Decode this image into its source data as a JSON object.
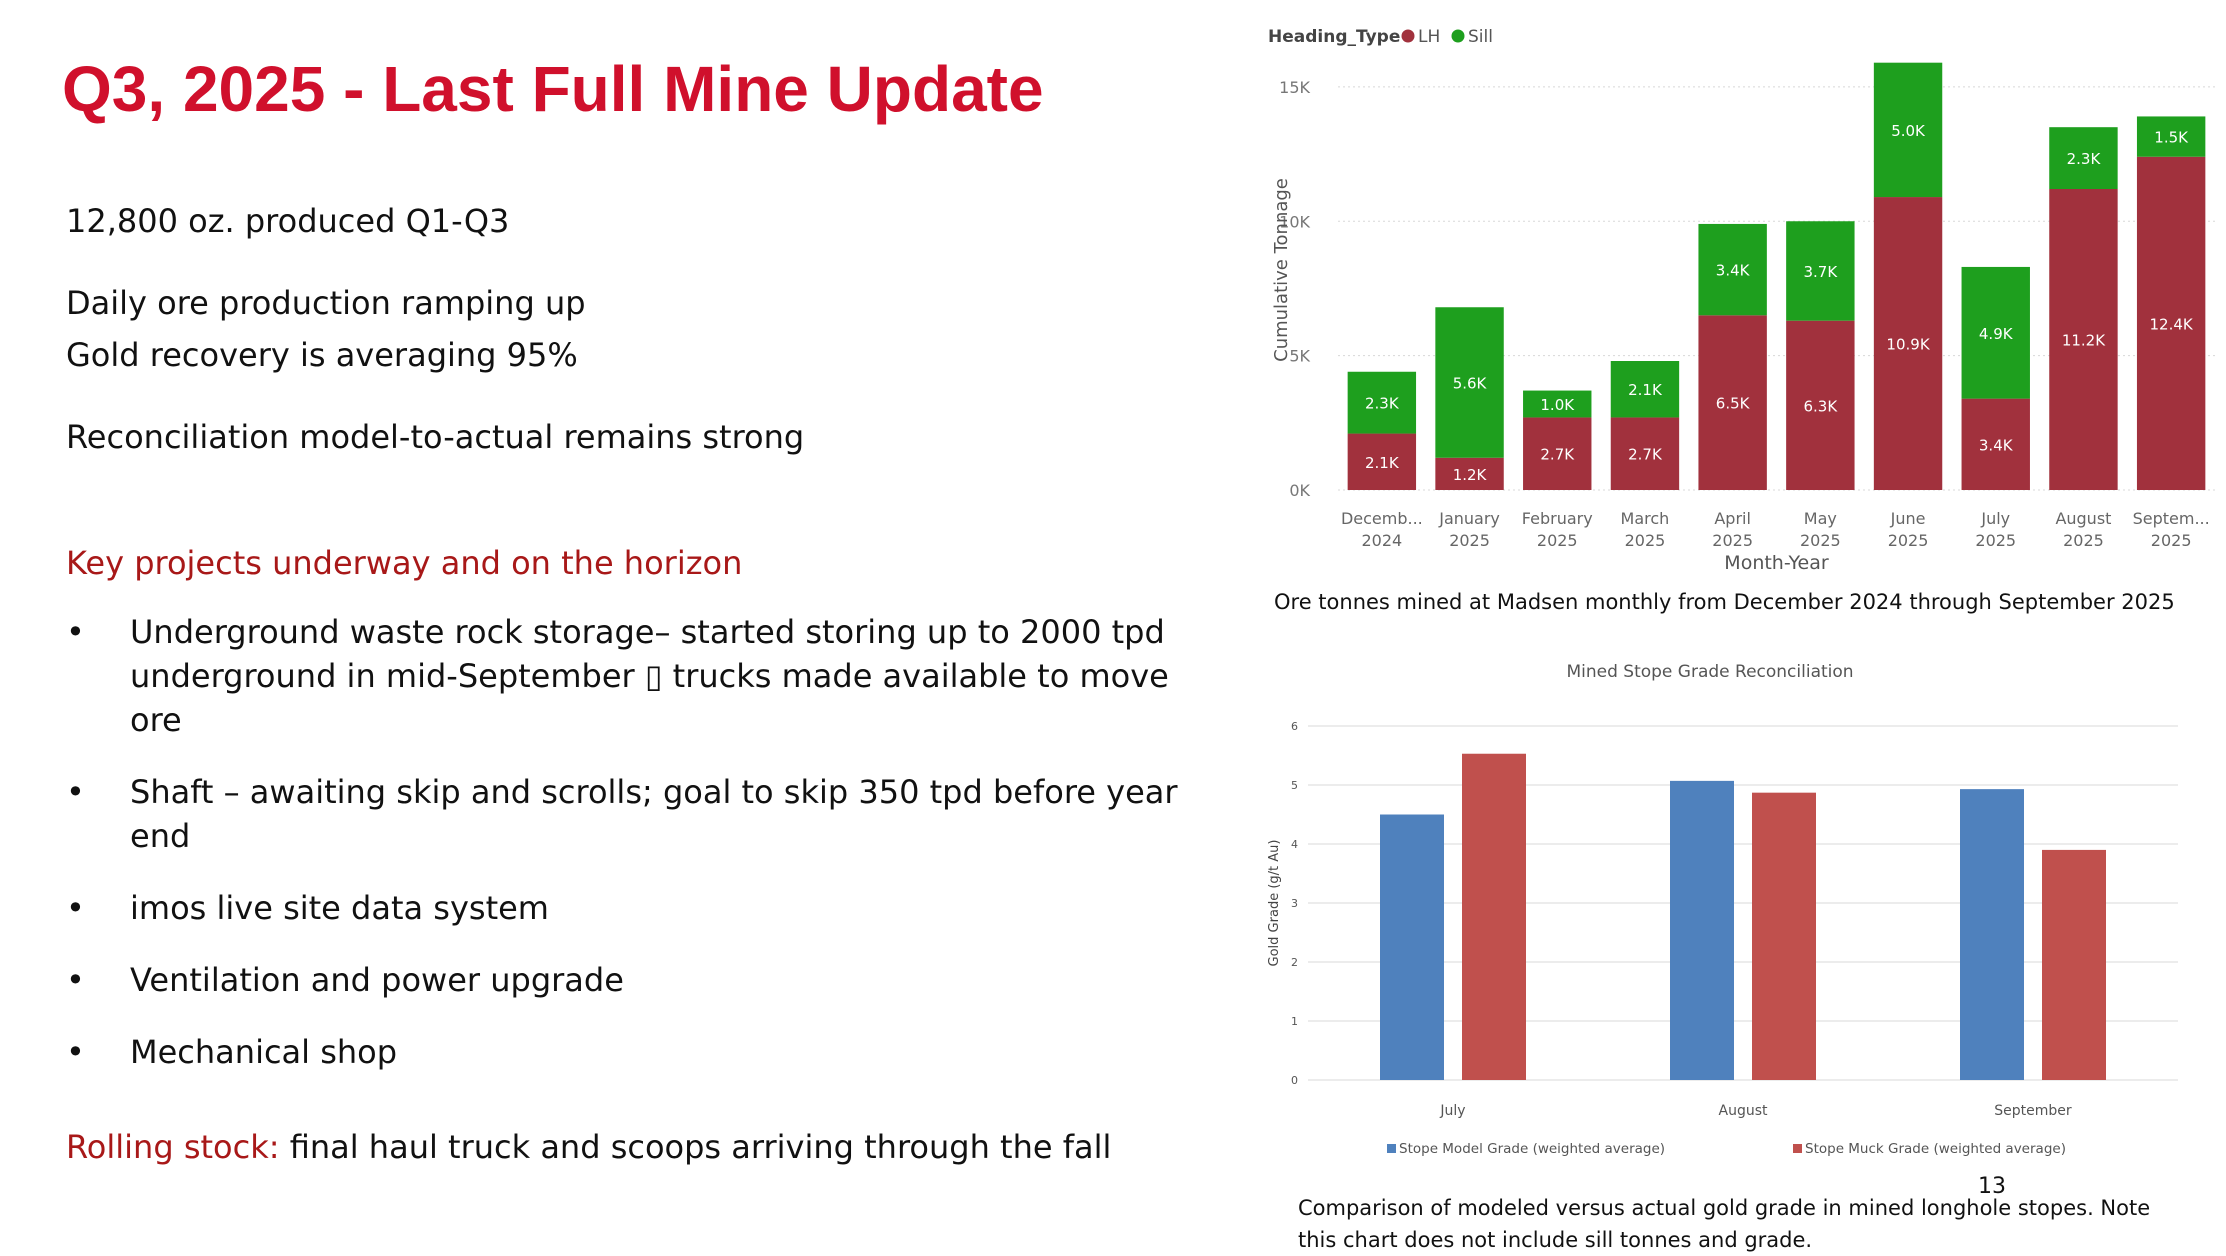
{
  "slide": {
    "title": "Q3, 2025 - Last Full Mine Update",
    "page_number": "13",
    "colors": {
      "title": "#d0102c",
      "accent": "#a81818"
    }
  },
  "body": {
    "lines": [
      "12,800 oz. produced Q1-Q3",
      "Daily ore production ramping up",
      "Gold recovery is averaging 95%",
      "Reconciliation model-to-actual remains strong"
    ],
    "key_projects_heading": "Key projects underway and on the horizon",
    "bullets": [
      "Underground waste rock storage– started storing up to 2000 tpd underground in mid-September ▯  trucks made available to move ore",
      "Shaft – awaiting skip and scrolls; goal to skip 350 tpd before year end",
      "imos live site data system",
      "Ventilation and power upgrade",
      "Mechanical shop"
    ],
    "bullet_glyph": "•",
    "rolling_stock": {
      "label": "Rolling stock:",
      "text": " final haul truck and scoops arriving through the fall"
    }
  },
  "chart_data": [
    {
      "type": "bar",
      "stacked": true,
      "legend_title": "Heading_Type",
      "legend_position": "top-left",
      "categories": [
        "Decemb... 2024",
        "January 2025",
        "February 2025",
        "March 2025",
        "April 2025",
        "May 2025",
        "June 2025",
        "July 2025",
        "August 2025",
        "Septem... 2025"
      ],
      "series": [
        {
          "name": "LH",
          "color": "#a1313d",
          "values": [
            2100,
            1200,
            2700,
            2700,
            6500,
            6300,
            10900,
            3400,
            11200,
            12400
          ],
          "labels": [
            "2.1K",
            "1.2K",
            "2.7K",
            "2.7K",
            "6.5K",
            "6.3K",
            "10.9K",
            "3.4K",
            "11.2K",
            "12.4K"
          ]
        },
        {
          "name": "Sill",
          "color": "#1e9f1e",
          "values": [
            2300,
            5600,
            1000,
            2100,
            3400,
            3700,
            5000,
            4900,
            2300,
            1500
          ],
          "labels": [
            "2.3K",
            "5.6K",
            "1.0K",
            "2.1K",
            "3.4K",
            "3.7K",
            "5.0K",
            "4.9K",
            "2.3K",
            "1.5K"
          ]
        }
      ],
      "xlabel": "Month-Year",
      "ylabel": "Cumulative Tonnage",
      "yticks": [
        "0K",
        "5K",
        "10K",
        "15K"
      ],
      "ylim": [
        0,
        16000
      ],
      "grid": true,
      "caption": "Ore tonnes mined at Madsen monthly from December 2024 through September 2025"
    },
    {
      "type": "bar",
      "title": "Mined Stope Grade Reconciliation",
      "categories": [
        "July",
        "August",
        "September"
      ],
      "series": [
        {
          "name": "Stope Model Grade (weighted average)",
          "color": "#4f81bd",
          "values": [
            4.5,
            5.07,
            4.93
          ]
        },
        {
          "name": "Stope Muck Grade (weighted average)",
          "color": "#c0504d",
          "values": [
            5.53,
            4.87,
            3.9
          ]
        }
      ],
      "xlabel": "",
      "ylabel": "Gold Grade (g/t Au)",
      "yticks": [
        "0",
        "1",
        "2",
        "3",
        "4",
        "5",
        "6"
      ],
      "ylim": [
        0,
        6
      ],
      "grid": true,
      "legend_position": "bottom",
      "caption": "Comparison of modeled versus actual gold grade in mined longhole stopes. Note this chart does not include sill tonnes and grade."
    }
  ]
}
